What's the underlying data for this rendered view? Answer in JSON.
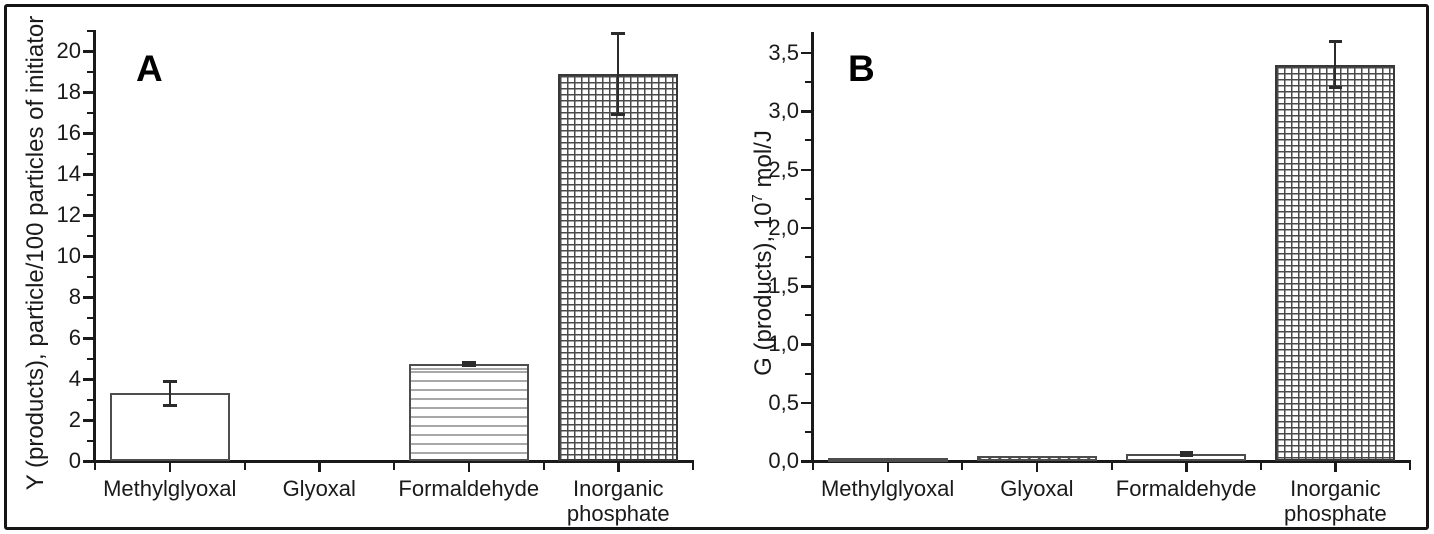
{
  "figure": {
    "panels": [
      {
        "letter": "A",
        "y_title": {
          "prefix": "Y (products), particle/100 particles of initiator",
          "sup": "",
          "suffix": ""
        },
        "y_ticks": [
          {
            "v": 0,
            "label": "0"
          },
          {
            "v": 2,
            "label": "2"
          },
          {
            "v": 4,
            "label": "4"
          },
          {
            "v": 6,
            "label": "6"
          },
          {
            "v": 8,
            "label": "8"
          },
          {
            "v": 10,
            "label": "10"
          },
          {
            "v": 12,
            "label": "12"
          },
          {
            "v": 14,
            "label": "14"
          },
          {
            "v": 16,
            "label": "16"
          },
          {
            "v": 18,
            "label": "18"
          },
          {
            "v": 20,
            "label": "20"
          }
        ],
        "y_minor_ticks": [
          1,
          3,
          5,
          7,
          9,
          11,
          13,
          15,
          17,
          19,
          21
        ],
        "bars": [
          {
            "category": "Methylglyoxal",
            "value": 3.3,
            "error": 0.6,
            "pattern": "plain"
          },
          {
            "category": "Glyoxal",
            "value": 0,
            "error": 0,
            "pattern": "none"
          },
          {
            "category": "Formaldehyde",
            "value": 4.75,
            "error": 0.1,
            "pattern": "horizontal-lines"
          },
          {
            "category": "Inorganic phosphate",
            "value": 18.9,
            "error": 2.0,
            "pattern": "grid"
          }
        ]
      },
      {
        "letter": "B",
        "y_title": {
          "prefix": "G (products), 10",
          "sup": "7",
          "suffix": " mol/J"
        },
        "y_ticks": [
          {
            "v": 0,
            "label": "0,0"
          },
          {
            "v": 0.5,
            "label": "0,5"
          },
          {
            "v": 1,
            "label": "1,0"
          },
          {
            "v": 1.5,
            "label": "1,5"
          },
          {
            "v": 2,
            "label": "2,0"
          },
          {
            "v": 2.5,
            "label": "2,5"
          },
          {
            "v": 3,
            "label": "3,0"
          },
          {
            "v": 3.5,
            "label": "3,5"
          }
        ],
        "y_minor_ticks": [
          0.25,
          0.75,
          1.25,
          1.75,
          2.25,
          2.75,
          3.25
        ],
        "bars": [
          {
            "category": "Methylglyoxal",
            "value": 0.03,
            "error": 0,
            "pattern": "plain"
          },
          {
            "category": "Glyoxal",
            "value": 0.04,
            "error": 0,
            "pattern": "diagonal-lines"
          },
          {
            "category": "Formaldehyde",
            "value": 0.06,
            "error": 0.015,
            "pattern": "plain"
          },
          {
            "category": "Inorganic phosphate",
            "value": 3.4,
            "error": 0.2,
            "pattern": "grid"
          }
        ]
      }
    ],
    "colors": {
      "axis": "#1a1a1a",
      "text": "#1a1a1a",
      "bar_border": "#4d4d4d",
      "error_bar": "#2b2b2b"
    }
  },
  "chart_data": [
    {
      "type": "bar",
      "panel": "A",
      "title": "",
      "categories": [
        "Methylglyoxal",
        "Glyoxal",
        "Formaldehyde",
        "Inorganic phosphate"
      ],
      "values": [
        3.3,
        0,
        4.75,
        18.9
      ],
      "errors": [
        0.6,
        0,
        0.1,
        2.0
      ],
      "bar_patterns": [
        "plain",
        "none",
        "horizontal-lines",
        "grid"
      ],
      "xlabel": "",
      "ylabel": "Y (products), particle/100 particles of initiator",
      "ylim": [
        0,
        21
      ],
      "ytick_step": 2,
      "ytick_minor_step": 1,
      "grid": false,
      "legend": false
    },
    {
      "type": "bar",
      "panel": "B",
      "title": "",
      "categories": [
        "Methylglyoxal",
        "Glyoxal",
        "Formaldehyde",
        "Inorganic phosphate"
      ],
      "values": [
        0.03,
        0.04,
        0.06,
        3.4
      ],
      "errors": [
        0,
        0,
        0.015,
        0.2
      ],
      "bar_patterns": [
        "plain",
        "diagonal-lines",
        "plain",
        "grid"
      ],
      "xlabel": "",
      "ylabel": "G (products), 10^7 mol/J",
      "ylim": [
        0,
        3.7
      ],
      "ytick_step": 0.5,
      "ytick_minor_step": 0.25,
      "decimal_separator": ",",
      "grid": false,
      "legend": false
    }
  ]
}
